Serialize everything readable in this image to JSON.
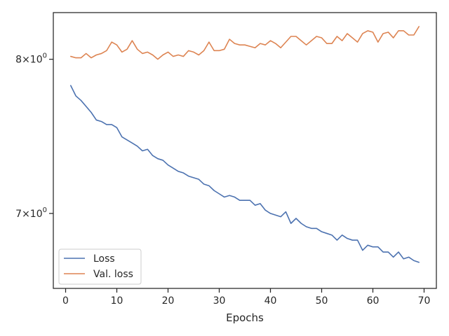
{
  "chart_data": {
    "type": "line",
    "title": "",
    "xlabel": "Epochs",
    "ylabel": "",
    "xlim": [
      -2.4,
      72.4
    ],
    "ylim": [
      6.56,
      8.33
    ],
    "yscale": "log",
    "x_ticks": [
      0,
      10,
      20,
      30,
      40,
      50,
      60,
      70
    ],
    "x_tick_labels": [
      "0",
      "10",
      "20",
      "30",
      "40",
      "50",
      "60",
      "70"
    ],
    "y_ticks": [
      7,
      8
    ],
    "y_tick_labels": [
      {
        "base": "7×10",
        "exp": "0"
      },
      {
        "base": "8×10",
        "exp": "0"
      }
    ],
    "grid": false,
    "legend_position": "lower-left",
    "series": [
      {
        "name": "Loss",
        "color": "#4c72b0",
        "x": [
          1,
          2,
          3,
          4,
          5,
          6,
          7,
          8,
          9,
          10,
          11,
          12,
          13,
          14,
          15,
          16,
          17,
          18,
          19,
          20,
          21,
          22,
          23,
          24,
          25,
          26,
          27,
          28,
          29,
          30,
          31,
          32,
          33,
          34,
          35,
          36,
          37,
          38,
          39,
          40,
          41,
          42,
          43,
          44,
          45,
          46,
          47,
          48,
          49,
          50,
          51,
          52,
          53,
          54,
          55,
          56,
          57,
          58,
          59,
          60,
          61,
          62,
          63,
          64,
          65,
          66,
          67,
          68,
          69
        ],
        "values": [
          7.82,
          7.75,
          7.72,
          7.68,
          7.64,
          7.59,
          7.58,
          7.56,
          7.56,
          7.54,
          7.48,
          7.46,
          7.44,
          7.42,
          7.39,
          7.4,
          7.36,
          7.34,
          7.33,
          7.3,
          7.28,
          7.26,
          7.25,
          7.23,
          7.22,
          7.21,
          7.18,
          7.17,
          7.14,
          7.12,
          7.1,
          7.11,
          7.1,
          7.08,
          7.08,
          7.08,
          7.05,
          7.06,
          7.02,
          7.0,
          6.99,
          6.98,
          7.01,
          6.94,
          6.97,
          6.94,
          6.92,
          6.91,
          6.91,
          6.89,
          6.88,
          6.87,
          6.84,
          6.87,
          6.85,
          6.84,
          6.84,
          6.78,
          6.81,
          6.8,
          6.8,
          6.77,
          6.77,
          6.74,
          6.77,
          6.73,
          6.74,
          6.72,
          6.71
        ]
      },
      {
        "name": "Val. loss",
        "color": "#dd8452",
        "x": [
          1,
          2,
          3,
          4,
          5,
          6,
          7,
          8,
          9,
          10,
          11,
          12,
          13,
          14,
          15,
          16,
          17,
          18,
          19,
          20,
          21,
          22,
          23,
          24,
          25,
          26,
          27,
          28,
          29,
          30,
          31,
          32,
          33,
          34,
          35,
          36,
          37,
          38,
          39,
          40,
          41,
          42,
          43,
          44,
          45,
          46,
          47,
          48,
          49,
          50,
          51,
          52,
          53,
          54,
          55,
          56,
          57,
          58,
          59,
          60,
          61,
          62,
          63,
          64,
          65,
          66,
          67,
          68,
          69
        ],
        "values": [
          8.02,
          8.01,
          8.01,
          8.04,
          8.01,
          8.03,
          8.04,
          8.06,
          8.12,
          8.1,
          8.05,
          8.07,
          8.13,
          8.07,
          8.04,
          8.05,
          8.03,
          8.0,
          8.03,
          8.05,
          8.02,
          8.03,
          8.02,
          8.06,
          8.05,
          8.03,
          8.06,
          8.12,
          8.06,
          8.06,
          8.07,
          8.14,
          8.11,
          8.1,
          8.1,
          8.09,
          8.08,
          8.11,
          8.1,
          8.13,
          8.11,
          8.08,
          8.12,
          8.16,
          8.16,
          8.13,
          8.1,
          8.13,
          8.16,
          8.15,
          8.11,
          8.11,
          8.16,
          8.13,
          8.18,
          8.15,
          8.12,
          8.18,
          8.2,
          8.19,
          8.12,
          8.18,
          8.19,
          8.15,
          8.2,
          8.2,
          8.17,
          8.17,
          8.23
        ]
      }
    ]
  }
}
